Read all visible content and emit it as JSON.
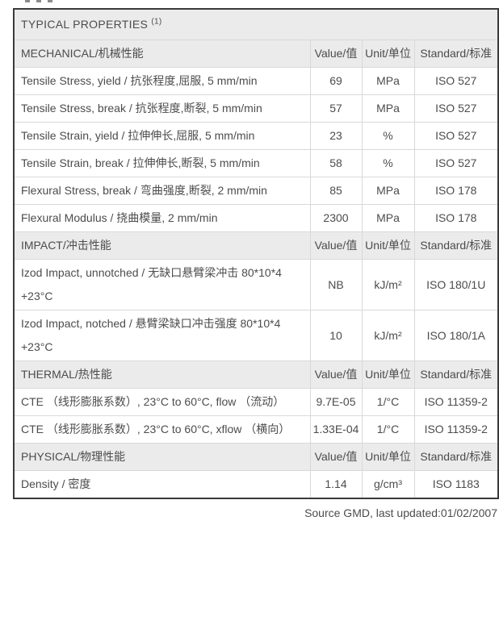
{
  "table": {
    "title": "TYPICAL PROPERTIES",
    "title_superscript": "(1)",
    "columns": [
      "Value/值",
      "Unit/单位",
      "Standard/标准"
    ],
    "sections": [
      {
        "label": "MECHANICAL/机械性能",
        "rows": [
          {
            "property": "Tensile Stress, yield / 抗张程度,屈服, 5 mm/min",
            "value": "69",
            "unit": "MPa",
            "standard": "ISO 527"
          },
          {
            "property": "Tensile Stress, break / 抗张程度,断裂, 5 mm/min",
            "value": "57",
            "unit": "MPa",
            "standard": "ISO 527"
          },
          {
            "property": "Tensile Strain, yield / 拉伸伸长,屈服, 5 mm/min",
            "value": "23",
            "unit": "%",
            "standard": "ISO 527"
          },
          {
            "property": "Tensile Strain, break / 拉伸伸长,断裂, 5 mm/min",
            "value": "58",
            "unit": "%",
            "standard": "ISO 527"
          },
          {
            "property": "Flexural Stress, break / 弯曲强度,断裂, 2 mm/min",
            "value": "85",
            "unit": "MPa",
            "standard": "ISO 178"
          },
          {
            "property": "Flexural Modulus / 挠曲模量, 2 mm/min",
            "value": "2300",
            "unit": "MPa",
            "standard": "ISO 178"
          }
        ]
      },
      {
        "label": "IMPACT/冲击性能",
        "rows": [
          {
            "property": "Izod Impact, unnotched / 无缺口悬臂梁冲击 80*10*4 +23°C",
            "value": "NB",
            "unit": "kJ/m²",
            "standard": "ISO 180/1U"
          },
          {
            "property": "Izod Impact, notched / 悬臂梁缺口冲击强度 80*10*4 +23°C",
            "value": "10",
            "unit": "kJ/m²",
            "standard": "ISO 180/1A"
          }
        ]
      },
      {
        "label": "THERMAL/热性能",
        "rows": [
          {
            "property": "CTE （线形膨胀系数）, 23°C to 60°C, flow （流动）",
            "value": "9.7E-05",
            "unit": "1/°C",
            "standard": "ISO 11359-2"
          },
          {
            "property": "CTE （线形膨胀系数）, 23°C to 60°C, xflow （横向）",
            "value": "1.33E-04",
            "unit": "1/°C",
            "standard": "ISO 11359-2"
          }
        ]
      },
      {
        "label": "PHYSICAL/物理性能",
        "rows": [
          {
            "property": "Density / 密度",
            "value": "1.14",
            "unit": "g/cm³",
            "standard": "ISO 1183"
          }
        ]
      }
    ],
    "footer": "Source GMD, last updated:01/02/2007",
    "colors": {
      "header_background": "#ebebeb",
      "outer_border": "#3a3a3a",
      "grid_line": "#d9d9d9",
      "text": "#4c4c4c"
    }
  }
}
